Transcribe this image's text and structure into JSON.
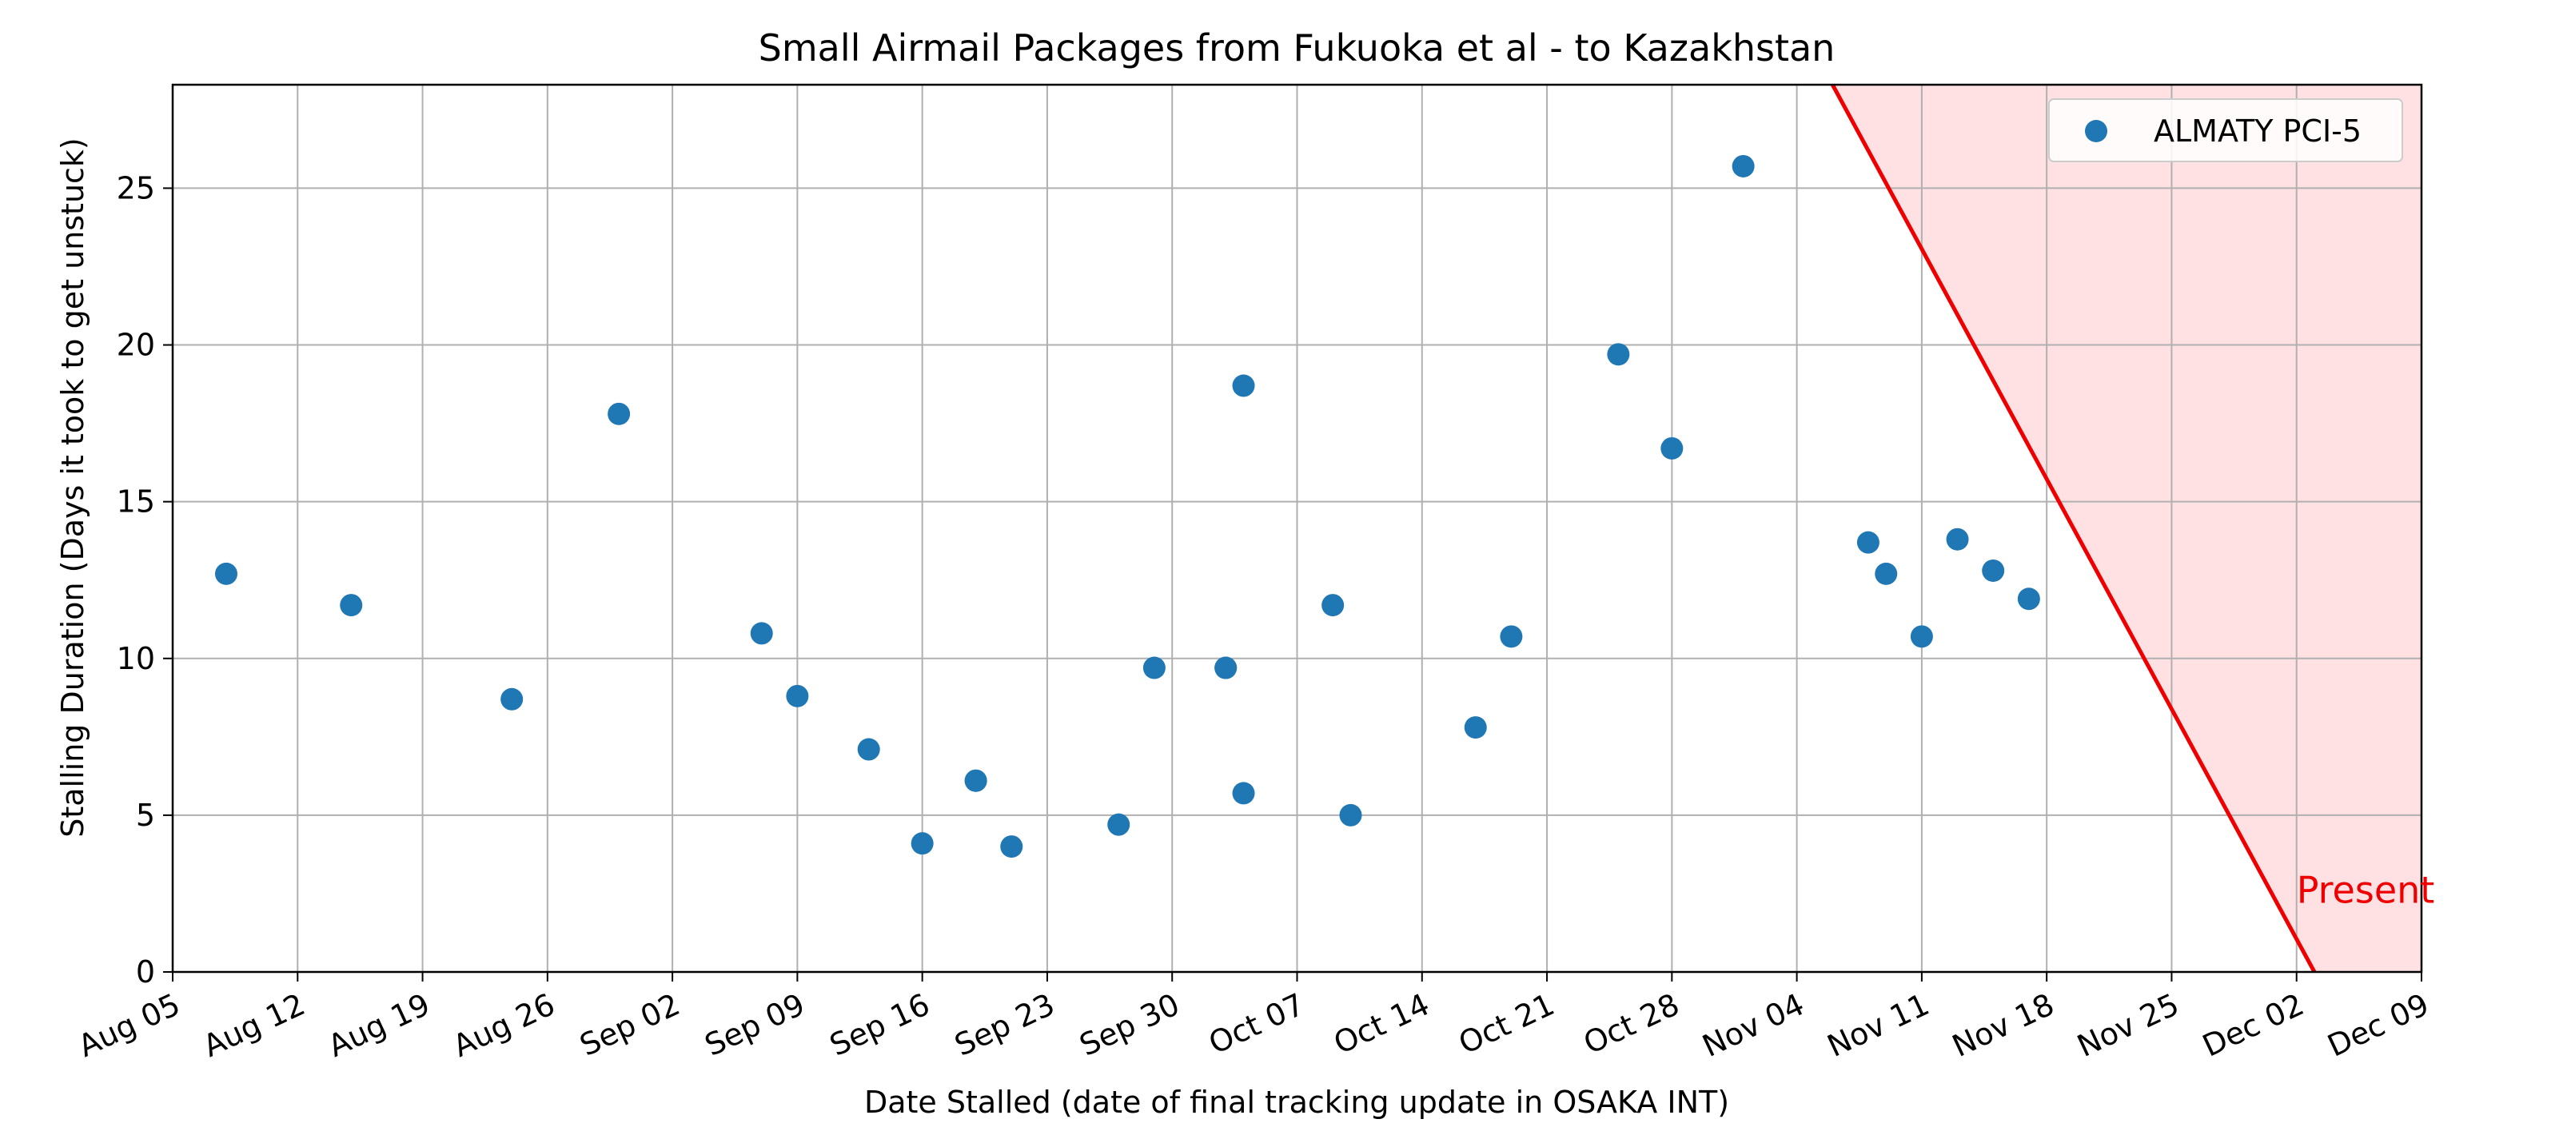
{
  "chart_data": {
    "type": "scatter",
    "title": "Small Airmail Packages from Fukuoka et al - to Kazakhstan",
    "xlabel": "Date Stalled (date of final tracking update in OSAKA INT)",
    "ylabel": "Stalling Duration (Days it took to get unstuck)",
    "xlim": [
      "Aug 05",
      "Dec 09"
    ],
    "ylim": [
      0,
      28.3
    ],
    "x_ticks": [
      "Aug 05",
      "Aug 12",
      "Aug 19",
      "Aug 26",
      "Sep 02",
      "Sep 09",
      "Sep 16",
      "Sep 23",
      "Sep 30",
      "Oct 07",
      "Oct 14",
      "Oct 21",
      "Oct 28",
      "Nov 04",
      "Nov 11",
      "Nov 18",
      "Nov 25",
      "Dec 02",
      "Dec 09"
    ],
    "y_ticks": [
      0,
      5,
      10,
      15,
      20,
      25
    ],
    "grid": true,
    "legend_position": "top-right",
    "series": [
      {
        "name": "ALMATY PCI-5",
        "color": "#1f77b4",
        "points": [
          {
            "x": "Aug 08",
            "y": 12.7
          },
          {
            "x": "Aug 15",
            "y": 11.7
          },
          {
            "x": "Aug 24",
            "y": 8.7
          },
          {
            "x": "Aug 30",
            "y": 17.8
          },
          {
            "x": "Sep 07",
            "y": 10.8
          },
          {
            "x": "Sep 09",
            "y": 8.8
          },
          {
            "x": "Sep 13",
            "y": 7.1
          },
          {
            "x": "Sep 16",
            "y": 4.1
          },
          {
            "x": "Sep 19",
            "y": 6.1
          },
          {
            "x": "Sep 19",
            "y": 6.1
          },
          {
            "x": "Sep 21",
            "y": 4.0
          },
          {
            "x": "Sep 27",
            "y": 4.7
          },
          {
            "x": "Sep 29",
            "y": 9.7
          },
          {
            "x": "Oct 03",
            "y": 9.7
          },
          {
            "x": "Oct 03",
            "y": 9.7
          },
          {
            "x": "Oct 04",
            "y": 5.7
          },
          {
            "x": "Oct 04",
            "y": 18.7
          },
          {
            "x": "Oct 09",
            "y": 11.7
          },
          {
            "x": "Oct 10",
            "y": 5.0
          },
          {
            "x": "Oct 17",
            "y": 7.8
          },
          {
            "x": "Oct 19",
            "y": 10.7
          },
          {
            "x": "Oct 25",
            "y": 19.7
          },
          {
            "x": "Oct 28",
            "y": 16.7
          },
          {
            "x": "Nov 01",
            "y": 25.7
          },
          {
            "x": "Nov 08",
            "y": 13.7
          },
          {
            "x": "Nov 09",
            "y": 12.7
          },
          {
            "x": "Nov 11",
            "y": 10.7
          },
          {
            "x": "Nov 13",
            "y": 13.8
          },
          {
            "x": "Nov 15",
            "y": 12.8
          },
          {
            "x": "Nov 17",
            "y": 11.9
          }
        ]
      }
    ],
    "deadline_line": {
      "color": "#ee0000",
      "shade_color": "#ffe0e3",
      "from": {
        "x": "Nov 06",
        "y": 28.3
      },
      "to": {
        "x": "Dec 03",
        "y": 0
      }
    },
    "annotations": [
      {
        "text": "Present",
        "x": "Dec 02",
        "y": 2.2,
        "color": "#ee0000"
      }
    ]
  }
}
